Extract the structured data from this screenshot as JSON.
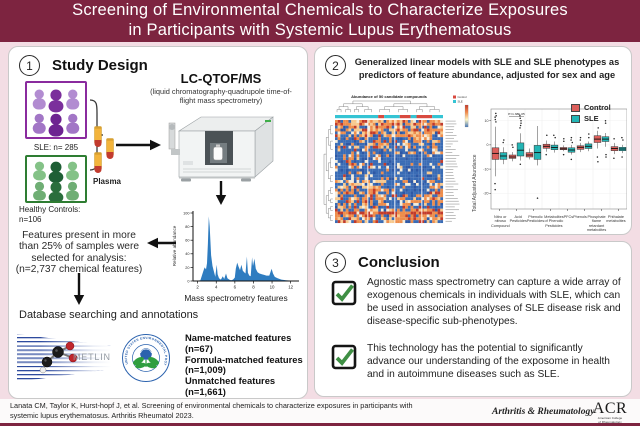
{
  "header": {
    "title_line1": "Screening of Environmental Chemicals to Characterize Exposures",
    "title_line2": "in Participants with Systemic Lupus Erythematosus"
  },
  "panel1": {
    "number": "1",
    "heading": "Study Design",
    "sle_label": "SLE: n= 285",
    "controls_label": "Healthy Controls:\nn=106",
    "plasma_label": "Plasma",
    "instrument_title": "LC-QTOF/MS",
    "instrument_subtitle": "(liquid chromatography-quadrupole time-of-flight mass spectrometry)",
    "features_note": "Features present in more than 25% of samples were selected for analysis: (n=2,737 chemical features)",
    "database_heading": "Database searching and annotations",
    "metlin_label": "METLIN",
    "epa_ring_text": "UNITED STATES ENVIRONMENTAL PROTECTION AGENCY",
    "matched_lines": [
      "Name-matched features",
      "(n=67)",
      "Formula-matched features",
      "(n=1,009)",
      "Unmatched features",
      "(n=1,661)"
    ]
  },
  "panel2": {
    "number": "2",
    "heading_line1": "Generalized linear models with SLE and SLE phenotypes as",
    "heading_line2": "predictors of feature abundance, adjusted for sex and age"
  },
  "panel3": {
    "number": "3",
    "heading": "Conclusion",
    "item1": "Agnostic mass spectrometry can capture a wide array of exogenous chemicals in individuals with SLE, which can be used in association analyses of SLE disease risk and disease-specific sub-phenotypes.",
    "item2": "This technology has the potential to significantly advance our understanding of the exposome in health and in autoimmune diseases such as SLE."
  },
  "footer": {
    "citation_line1": "Lanata CM, Taylor K, Hurst-hopf J, et al. Screening of environmental chemicals to characterize exposures in participants with",
    "citation_line2": "systemic lupus erythematosus. Arthritis Rheumatol 2023.",
    "journal": "Arthritis & Rheumatology",
    "acr": "ACR",
    "acr_sub": "American College\nof Rheumatology"
  },
  "colors": {
    "header_maroon": "#7d2440",
    "frame_pink": "#f3dde4",
    "sle_purple": "#8a2b9e",
    "control_green": "#2e7d32",
    "tube_yellow": "#f3b43c",
    "tube_red": "#c23b2e",
    "chromatogram_blue": "#2e7cc0",
    "check_green": "#3f8f44",
    "control_red": "#dd5f5b",
    "sle_teal": "#23b5b5"
  },
  "chart_data": [
    {
      "id": "chromatogram",
      "type": "area",
      "xlabel": "Mass spectrometry features",
      "ylabel": "Relative abundance",
      "xlim": [
        1.5,
        13
      ],
      "ylim": [
        0,
        100
      ],
      "xticks": [
        2,
        4,
        6,
        8,
        10,
        12
      ],
      "yticks": [
        0,
        20,
        40,
        60,
        80,
        100
      ],
      "fill": "#2e7cc0",
      "points": [
        [
          1.8,
          0
        ],
        [
          2.3,
          1
        ],
        [
          2.6,
          14
        ],
        [
          2.75,
          20
        ],
        [
          2.9,
          17
        ],
        [
          3.0,
          26
        ],
        [
          3.1,
          55
        ],
        [
          3.2,
          95
        ],
        [
          3.3,
          80
        ],
        [
          3.45,
          38
        ],
        [
          3.6,
          22
        ],
        [
          3.75,
          14
        ],
        [
          3.9,
          6
        ],
        [
          4.05,
          24
        ],
        [
          4.15,
          10
        ],
        [
          4.3,
          4
        ],
        [
          4.5,
          2
        ],
        [
          4.7,
          7
        ],
        [
          4.85,
          3
        ],
        [
          5.05,
          11
        ],
        [
          5.2,
          4
        ],
        [
          5.4,
          2
        ],
        [
          5.6,
          1
        ],
        [
          5.8,
          2
        ],
        [
          6.0,
          5
        ],
        [
          6.1,
          18
        ],
        [
          6.25,
          27
        ],
        [
          6.4,
          21
        ],
        [
          6.55,
          16
        ],
        [
          6.7,
          24
        ],
        [
          6.85,
          15
        ],
        [
          7.0,
          13
        ],
        [
          7.15,
          11
        ],
        [
          7.3,
          36
        ],
        [
          7.4,
          12
        ],
        [
          7.55,
          8
        ],
        [
          7.7,
          7
        ],
        [
          7.85,
          35
        ],
        [
          7.95,
          22
        ],
        [
          8.1,
          33
        ],
        [
          8.25,
          18
        ],
        [
          8.45,
          13
        ],
        [
          8.65,
          11
        ],
        [
          8.9,
          10
        ],
        [
          9.15,
          9
        ],
        [
          9.4,
          8
        ],
        [
          9.7,
          8
        ],
        [
          9.95,
          18
        ],
        [
          10.1,
          11
        ],
        [
          10.3,
          6
        ],
        [
          10.6,
          4
        ],
        [
          11.0,
          2
        ],
        [
          11.5,
          1
        ],
        [
          12.2,
          0.5
        ],
        [
          12.6,
          0
        ]
      ]
    },
    {
      "id": "compound-heatmap",
      "type": "heatmap",
      "title": "Abundance of 50 candidate compounds",
      "legend": [
        {
          "name": "Control",
          "color": "#d84a3f"
        },
        {
          "name": "SLE",
          "color": "#35c4d4"
        }
      ],
      "palette": {
        "red": "#c23b2b",
        "orange": "#ee8d4b",
        "light_orange": "#f7c98e",
        "cream": "#f3ecdb",
        "blue": "#3a6cb5",
        "dark_blue": "#2e58a5"
      },
      "colorbar": [
        "#c0392b",
        "#f08a4b",
        "#fdf6c5",
        "#4575b5"
      ]
    },
    {
      "id": "abundance-boxplot",
      "type": "boxplot",
      "ylabel": "Total Adjusted Abundance",
      "ylim": [
        -25,
        14
      ],
      "yticks": [
        10,
        0,
        -10,
        -20
      ],
      "annotation": "P=1.38E-05",
      "legend": [
        {
          "name": "Control",
          "color": "#dd5f5b"
        },
        {
          "name": "SLE",
          "color": "#23b5b5"
        }
      ],
      "categories": [
        "Nitro or nitroso Compound",
        "Acid Pesticides",
        "Phenolic Pesticides",
        "Metabolites of Phenolic Pesticides",
        "PFCs",
        "Phenols",
        "Phosphate flame retardant metabolites",
        "Phthalate metabolites"
      ],
      "series": [
        {
          "name": "Control",
          "boxes": [
            [
              -13,
              -6,
              -3.5,
              -1.2,
              7.5
            ],
            [
              -6.8,
              -5.6,
              -5,
              -4.2,
              -3
            ],
            [
              -6,
              -5,
              -4.2,
              -3.2,
              -1.5
            ],
            [
              -2.8,
              -1.4,
              -0.6,
              0.3,
              1.8
            ],
            [
              -2.6,
              -2,
              -1.6,
              -1.1,
              -0.2
            ],
            [
              -3,
              -1.9,
              -1,
              -0.4,
              0.8
            ],
            [
              -1.5,
              1,
              2.4,
              3.8,
              5.8
            ],
            [
              -3.8,
              -2.4,
              -1.5,
              -0.7,
              0.8
            ]
          ],
          "outliers": [
            [
              13,
              12,
              11.5,
              10.5,
              9.5,
              -16,
              -18.5
            ],
            [
              0,
              -1
            ],
            [],
            [
              4,
              -4
            ],
            [
              1.5,
              2.5,
              -4
            ],
            [
              2,
              3
            ],
            [
              -5,
              -7,
              7
            ],
            [
              2.5,
              -5.5
            ]
          ]
        },
        {
          "name": "SLE",
          "boxes": [
            [
              -8,
              -6,
              -4.6,
              -3.2,
              -1
            ],
            [
              -6.5,
              -4.6,
              -2.2,
              0.8,
              4.8
            ],
            [
              -8.5,
              -6,
              -3.2,
              -0.2,
              7.8
            ],
            [
              -3.2,
              -2,
              -1.1,
              -0.1,
              1.4
            ],
            [
              -4,
              -3,
              -2.1,
              -1.2,
              0
            ],
            [
              -2.6,
              -1.5,
              -0.6,
              0.4,
              1.4
            ],
            [
              -0.8,
              1.4,
              2.4,
              3.4,
              4.9
            ],
            [
              -3.4,
              -2.4,
              -1.7,
              -1,
              0
            ]
          ],
          "outliers": [
            [
              1,
              2
            ],
            [
              12,
              11,
              10,
              9,
              8,
              7,
              -8
            ],
            [
              -22
            ],
            [
              3,
              4
            ],
            [
              1,
              2,
              3,
              -6
            ],
            [
              3,
              4.5
            ],
            [
              9,
              10,
              -4,
              -5
            ],
            [
              2,
              3,
              -5
            ]
          ]
        }
      ]
    }
  ]
}
